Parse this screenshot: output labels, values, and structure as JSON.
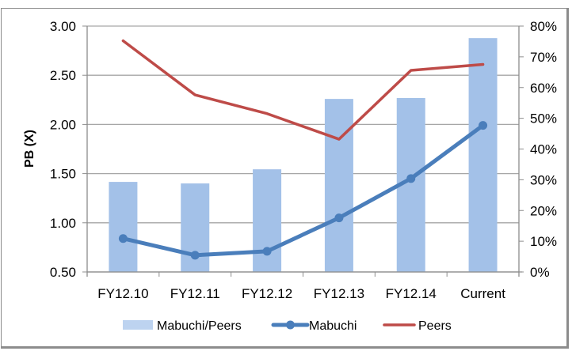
{
  "chart_data": {
    "type": "bar+line (dual axis)",
    "title": "",
    "categories": [
      "FY12.10",
      "FY12.11",
      "FY12.12",
      "FY12.13",
      "FY12.14",
      "Current"
    ],
    "series": [
      {
        "name": "Mabuchi/Peers",
        "type": "bar",
        "axis": "right",
        "unit": "%",
        "color": "#a3c1e8",
        "values": [
          29.3,
          28.8,
          33.4,
          56.3,
          56.6,
          76.1
        ]
      },
      {
        "name": "Mabuchi",
        "type": "line",
        "axis": "left",
        "markers": true,
        "color": "#4a7ebb",
        "values": [
          0.84,
          0.67,
          0.71,
          1.05,
          1.45,
          1.99
        ]
      },
      {
        "name": "Peers",
        "type": "line",
        "axis": "left",
        "markers": false,
        "color": "#be4b48",
        "values": [
          2.85,
          2.3,
          2.11,
          1.85,
          2.55,
          2.61
        ]
      }
    ],
    "xlabel": "",
    "ylabel": "PB (X)",
    "ylim": [
      0.5,
      3.0
    ],
    "yticks": [
      "0.50",
      "1.00",
      "1.50",
      "2.00",
      "2.50",
      "3.00"
    ],
    "y2label": "",
    "y2lim": [
      0,
      80
    ],
    "y2ticks": [
      "0%",
      "10%",
      "20%",
      "30%",
      "40%",
      "50%",
      "60%",
      "70%",
      "80%"
    ],
    "grid": true,
    "legend_position": "bottom"
  },
  "axes": {
    "left_title": "PB (X)"
  },
  "legend": {
    "items": [
      {
        "label": "Mabuchi/Peers",
        "kind": "bar",
        "color": "#a3c1e8"
      },
      {
        "label": "Mabuchi",
        "kind": "line-marker",
        "color": "#4a7ebb"
      },
      {
        "label": "Peers",
        "kind": "line",
        "color": "#be4b48"
      }
    ]
  },
  "colors": {
    "grid": "#a6a6a6",
    "axis": "#8c8c8c",
    "frame": "#8c8c8c"
  }
}
